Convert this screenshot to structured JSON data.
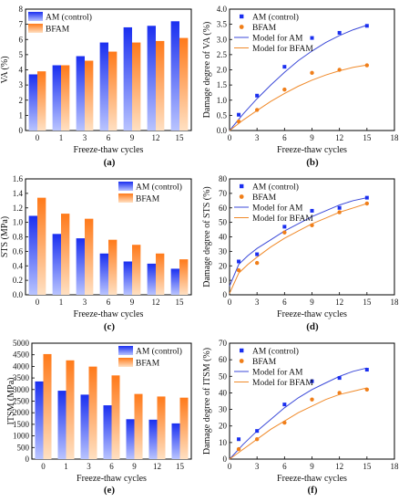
{
  "colors": {
    "am_bar_top": "#1a2ff0",
    "am_bar_bottom": "#b9c4ff",
    "bfam_bar_top": "#ff7a1a",
    "bfam_bar_bottom": "#ffe0c2",
    "am_line": "#3b49d8",
    "bfam_line": "#f08a2a",
    "am_point": "#1a2ff0",
    "bfam_point": "#f07f1a"
  },
  "chart_data": [
    {
      "id": "a",
      "panel_label": "(a)",
      "type": "bar",
      "categories": [
        "0",
        "1",
        "3",
        "6",
        "9",
        "12",
        "15"
      ],
      "series": [
        {
          "name": "AM (control)",
          "values": [
            3.7,
            4.3,
            4.9,
            5.8,
            6.8,
            6.9,
            7.2
          ]
        },
        {
          "name": "BFAM",
          "values": [
            3.9,
            4.3,
            4.6,
            5.2,
            5.8,
            5.9,
            6.1
          ]
        }
      ],
      "xlabel": "Freeze-thaw cycles",
      "ylabel": "VA (%)",
      "ylim": [
        0,
        8
      ],
      "yticks": [
        0,
        1,
        2,
        3,
        4,
        5,
        6,
        7,
        8
      ],
      "legend": "top-left"
    },
    {
      "id": "b",
      "panel_label": "(b)",
      "type": "scatter",
      "series": [
        {
          "name": "AM (control)",
          "x": [
            1,
            3,
            6,
            9,
            12,
            15
          ],
          "y": [
            0.52,
            1.15,
            2.1,
            3.05,
            3.22,
            3.45
          ],
          "marker": "square"
        },
        {
          "name": "BFAM",
          "x": [
            1,
            3,
            6,
            9,
            12,
            15
          ],
          "y": [
            0.3,
            0.68,
            1.35,
            1.9,
            2.0,
            2.15
          ],
          "marker": "circle"
        }
      ],
      "models": [
        {
          "name": "Model for AM",
          "x": [
            0,
            1.5,
            3,
            4.5,
            6,
            7.5,
            9,
            10.5,
            12,
            13.5,
            15
          ],
          "y": [
            0,
            0.55,
            1.05,
            1.5,
            1.92,
            2.3,
            2.62,
            2.9,
            3.13,
            3.32,
            3.47
          ]
        },
        {
          "name": "Model for BFAM",
          "x": [
            0,
            1.5,
            3,
            4.5,
            6,
            7.5,
            9,
            10.5,
            12,
            13.5,
            15
          ],
          "y": [
            0,
            0.35,
            0.66,
            0.96,
            1.22,
            1.46,
            1.66,
            1.83,
            1.97,
            2.08,
            2.16
          ]
        }
      ],
      "xlabel": "Freeze-thaw cycles",
      "ylabel": "Damage degree of VA (%)",
      "xlim": [
        0,
        18
      ],
      "xticks": [
        0,
        3,
        6,
        9,
        12,
        15,
        18
      ],
      "ylim": [
        0,
        4
      ],
      "yticks": [
        0.0,
        0.5,
        1.0,
        1.5,
        2.0,
        2.5,
        3.0,
        3.5,
        4.0
      ],
      "legend": "top-left"
    },
    {
      "id": "c",
      "panel_label": "(c)",
      "type": "bar",
      "categories": [
        "0",
        "1",
        "3",
        "6",
        "9",
        "12",
        "15"
      ],
      "series": [
        {
          "name": "AM (control)",
          "values": [
            1.09,
            0.84,
            0.78,
            0.57,
            0.46,
            0.43,
            0.36
          ]
        },
        {
          "name": "BFAM",
          "values": [
            1.34,
            1.12,
            1.05,
            0.76,
            0.69,
            0.57,
            0.49
          ]
        }
      ],
      "xlabel": "Freeze-thaw cycles",
      "ylabel": "STS (MPa)",
      "ylim": [
        0,
        1.6
      ],
      "yticks": [
        0.0,
        0.2,
        0.4,
        0.6,
        0.8,
        1.0,
        1.2,
        1.4,
        1.6
      ],
      "legend": "top-right"
    },
    {
      "id": "d",
      "panel_label": "(d)",
      "type": "scatter",
      "series": [
        {
          "name": "AM (control)",
          "x": [
            1,
            3,
            6,
            9,
            12,
            15
          ],
          "y": [
            23,
            28,
            47,
            58,
            60,
            67
          ],
          "marker": "square"
        },
        {
          "name": "BFAM",
          "x": [
            1,
            3,
            6,
            9,
            12,
            15
          ],
          "y": [
            17,
            22,
            43,
            48,
            57,
            63
          ],
          "marker": "circle"
        }
      ],
      "models": [
        {
          "name": "Model for AM",
          "x": [
            0,
            1,
            2,
            3,
            4.5,
            6,
            7.5,
            9,
            10.5,
            12,
            13.5,
            15
          ],
          "y": [
            6,
            21,
            27,
            32,
            38,
            44,
            49,
            54,
            58,
            62,
            65,
            67
          ]
        },
        {
          "name": "Model for BFAM",
          "x": [
            0,
            1,
            2,
            3,
            4.5,
            6,
            7.5,
            9,
            10.5,
            12,
            13.5,
            15
          ],
          "y": [
            1,
            15,
            21,
            26,
            33,
            39,
            44,
            49,
            53,
            57,
            60,
            63
          ]
        }
      ],
      "xlabel": "Freeze-thaw cycles",
      "ylabel": "Damage degree of STS (%)",
      "xlim": [
        0,
        18
      ],
      "xticks": [
        0,
        3,
        6,
        9,
        12,
        15,
        18
      ],
      "ylim": [
        0,
        80
      ],
      "yticks": [
        0,
        10,
        20,
        30,
        40,
        50,
        60,
        70,
        80
      ],
      "legend": "top-left"
    },
    {
      "id": "e",
      "panel_label": "(e)",
      "type": "bar",
      "categories": [
        "0",
        "1",
        "3",
        "6",
        "9",
        "12",
        "15"
      ],
      "series": [
        {
          "name": "AM (control)",
          "values": [
            3350,
            2950,
            2780,
            2320,
            1720,
            1700,
            1540
          ]
        },
        {
          "name": "BFAM",
          "values": [
            4530,
            4260,
            3990,
            3610,
            2810,
            2700,
            2650
          ]
        }
      ],
      "xlabel": "Freeze-thaw cycles",
      "ylabel": "ITSM (MPa)",
      "ylim": [
        0,
        5000
      ],
      "yticks": [
        0,
        500,
        1000,
        1500,
        2000,
        2500,
        3000,
        3500,
        4000,
        4500,
        5000
      ],
      "legend": "top-right"
    },
    {
      "id": "f",
      "panel_label": "(f)",
      "type": "scatter",
      "series": [
        {
          "name": "AM (control)",
          "x": [
            1,
            3,
            6,
            9,
            12,
            15
          ],
          "y": [
            12,
            17,
            33,
            47,
            49,
            54
          ],
          "marker": "square"
        },
        {
          "name": "BFAM",
          "x": [
            1,
            3,
            6,
            9,
            12,
            15
          ],
          "y": [
            6,
            12,
            22,
            36,
            40,
            42
          ],
          "marker": "circle"
        }
      ],
      "models": [
        {
          "name": "Model for AM",
          "x": [
            0,
            1.5,
            3,
            4.5,
            6,
            7.5,
            9,
            10.5,
            12,
            13.5,
            15
          ],
          "y": [
            0,
            9,
            17,
            24,
            31,
            37,
            42,
            46,
            50,
            53,
            55
          ]
        },
        {
          "name": "Model for BFAM",
          "x": [
            0,
            1.5,
            3,
            4.5,
            6,
            7.5,
            9,
            10.5,
            12,
            13.5,
            15
          ],
          "y": [
            0,
            6,
            12,
            18,
            23,
            28,
            32,
            36,
            39,
            41,
            43
          ]
        }
      ],
      "xlabel": "Freeze-thaw cycles",
      "ylabel": "Damage degree of ITSM (%)",
      "xlim": [
        0,
        18
      ],
      "xticks": [
        0,
        3,
        6,
        9,
        12,
        15,
        18
      ],
      "ylim": [
        0,
        70
      ],
      "yticks": [
        0,
        10,
        20,
        30,
        40,
        50,
        60,
        70
      ],
      "legend": "top-left"
    }
  ]
}
